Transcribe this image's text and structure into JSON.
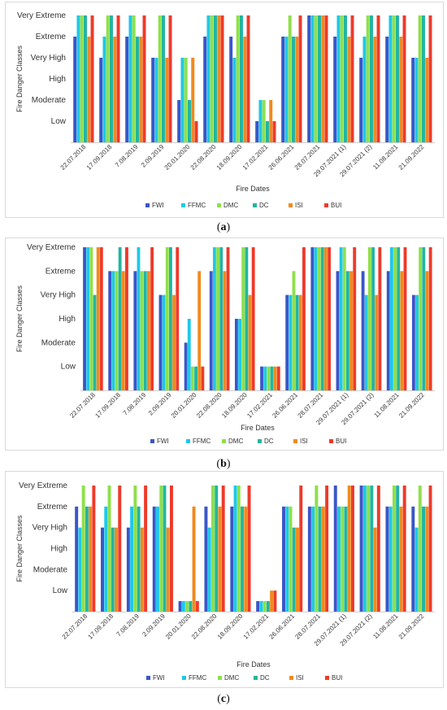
{
  "charts": [
    {
      "id": "a",
      "caption_label": "a"
    },
    {
      "id": "b",
      "caption_label": "b"
    },
    {
      "id": "c",
      "caption_label": "c"
    }
  ],
  "chart_data": [
    {
      "type": "bar",
      "panel": "a",
      "xlabel": "Fire Dates",
      "ylabel": "Fire Danger Classes",
      "y_classes": [
        "Low",
        "Moderate",
        "High",
        "Very High",
        "Extreme",
        "Very Extreme"
      ],
      "y_class_values": [
        1,
        2,
        3,
        4,
        5,
        6
      ],
      "ylim": [
        0,
        6
      ],
      "grid": false,
      "legend_position": "bottom",
      "categories": [
        "22.07.2018",
        "17.09.2018",
        "7.08.2019",
        "2.09.2019",
        "20.01.2020",
        "22.08.2020",
        "18.09.2020",
        "17.02.2021",
        "26.06.2021",
        "28.07.2021",
        "29.07.2021 (1)",
        "29.07.2021 (2)",
        "11.08.2021",
        "21.09.2022"
      ],
      "series": [
        {
          "name": "FWI",
          "color": "#3a56c8",
          "values": [
            5,
            4,
            5,
            4,
            2,
            5,
            5,
            1,
            5,
            6,
            5,
            4,
            5,
            4
          ]
        },
        {
          "name": "FFMC",
          "color": "#1ec8e6",
          "values": [
            6,
            5,
            6,
            4,
            4,
            6,
            4,
            2,
            5,
            6,
            6,
            5,
            6,
            4
          ]
        },
        {
          "name": "DMC",
          "color": "#8ee04a",
          "values": [
            6,
            6,
            6,
            6,
            4,
            6,
            6,
            2,
            6,
            6,
            6,
            6,
            6,
            6
          ]
        },
        {
          "name": "DC",
          "color": "#22b5a0",
          "values": [
            6,
            6,
            5,
            6,
            2,
            6,
            6,
            1,
            5,
            6,
            6,
            6,
            6,
            6
          ]
        },
        {
          "name": "ISI",
          "color": "#f08a1e",
          "values": [
            5,
            5,
            5,
            4,
            4,
            6,
            5,
            2,
            5,
            6,
            5,
            5,
            5,
            4
          ]
        },
        {
          "name": "BUI",
          "color": "#ee3a2a",
          "values": [
            6,
            6,
            6,
            6,
            1,
            6,
            6,
            1,
            6,
            6,
            6,
            6,
            6,
            6
          ]
        }
      ]
    },
    {
      "type": "bar",
      "panel": "b",
      "xlabel": "Fire Dates",
      "ylabel": "Fire Danger Classes",
      "y_classes": [
        "Low",
        "Moderate",
        "High",
        "Very High",
        "Extreme",
        "Very Extreme"
      ],
      "y_class_values": [
        1,
        2,
        3,
        4,
        5,
        6
      ],
      "ylim": [
        0,
        6
      ],
      "grid": false,
      "legend_position": "bottom",
      "categories": [
        "22.07.2018",
        "17.09.2018",
        "7.08.2019",
        "2.09.2019",
        "20.01.2020",
        "22.08.2020",
        "18.09.2020",
        "17.02.2021",
        "26.06.2021",
        "28.07.2021",
        "29.07.2021 (1)",
        "29.07.2021 (2)",
        "11.08.2021",
        "21.09.2022"
      ],
      "series": [
        {
          "name": "FWI",
          "color": "#3a56c8",
          "values": [
            6,
            5,
            5,
            4,
            2,
            5,
            3,
            1,
            4,
            6,
            5,
            5,
            5,
            4
          ]
        },
        {
          "name": "FFMC",
          "color": "#1ec8e6",
          "values": [
            6,
            5,
            6,
            4,
            3,
            6,
            3,
            1,
            4,
            6,
            6,
            4,
            6,
            4
          ]
        },
        {
          "name": "DMC",
          "color": "#8ee04a",
          "values": [
            6,
            5,
            5,
            6,
            1,
            6,
            6,
            1,
            5,
            6,
            6,
            6,
            6,
            6
          ]
        },
        {
          "name": "DC",
          "color": "#22b5a0",
          "values": [
            4,
            6,
            5,
            6,
            1,
            6,
            6,
            1,
            4,
            6,
            5,
            6,
            6,
            6
          ]
        },
        {
          "name": "ISI",
          "color": "#f08a1e",
          "values": [
            6,
            5,
            5,
            4,
            5,
            5,
            4,
            1,
            4,
            6,
            5,
            4,
            5,
            5
          ]
        },
        {
          "name": "BUI",
          "color": "#ee3a2a",
          "values": [
            6,
            6,
            6,
            6,
            1,
            6,
            6,
            1,
            6,
            6,
            6,
            6,
            6,
            6
          ]
        }
      ]
    },
    {
      "type": "bar",
      "panel": "c",
      "xlabel": "Fire Dates",
      "ylabel": "Fire Danger Classes",
      "y_classes": [
        "Low",
        "Moderate",
        "High",
        "Very High",
        "Extreme",
        "Very Extreme"
      ],
      "y_class_values": [
        1,
        2,
        3,
        4,
        5,
        6
      ],
      "ylim": [
        0,
        6
      ],
      "grid": false,
      "legend_position": "bottom",
      "categories": [
        "22.07.2018",
        "17.09.2018",
        "7.08.2019",
        "2.09.2019",
        "20.01.2020",
        "22.08.2020",
        "18.09.2020",
        "17.02.2021",
        "26.06.2021",
        "28.07.2021",
        "29.07.2021 (1)",
        "29.07.2021 (2)",
        "11.08.2021",
        "21.09.2022"
      ],
      "series": [
        {
          "name": "FWI",
          "color": "#3a56c8",
          "values": [
            5,
            4,
            4,
            5,
            0.5,
            5,
            5,
            0.5,
            5,
            5,
            6,
            6,
            5,
            5
          ]
        },
        {
          "name": "FFMC",
          "color": "#1ec8e6",
          "values": [
            4,
            5,
            5,
            5,
            0.5,
            4,
            6,
            0.5,
            5,
            5,
            5,
            6,
            5,
            4
          ]
        },
        {
          "name": "DMC",
          "color": "#8ee04a",
          "values": [
            6,
            6,
            6,
            6,
            0.5,
            6,
            6,
            0.5,
            5,
            6,
            5,
            6,
            6,
            6
          ]
        },
        {
          "name": "DC",
          "color": "#22b5a0",
          "values": [
            5,
            4,
            5,
            6,
            0.5,
            6,
            5,
            0.5,
            4,
            5,
            5,
            6,
            6,
            5
          ]
        },
        {
          "name": "ISI",
          "color": "#f08a1e",
          "values": [
            5,
            4,
            4,
            4,
            5,
            5,
            5,
            1,
            4,
            5,
            6,
            4,
            5,
            5
          ]
        },
        {
          "name": "BUI",
          "color": "#ee3a2a",
          "values": [
            6,
            6,
            6,
            6,
            0.5,
            6,
            6,
            1,
            6,
            6,
            6,
            6,
            6,
            6
          ]
        }
      ]
    }
  ]
}
